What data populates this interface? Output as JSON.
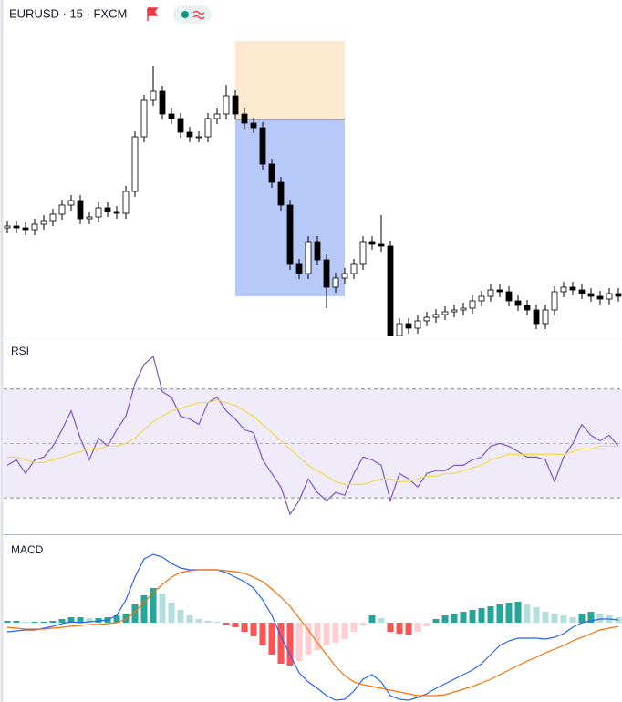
{
  "chart_data": [
    {
      "type": "candlestick",
      "title": "EURUSD · 15 · FXCM",
      "open": [
        118,
        120,
        118,
        116,
        122,
        126,
        133,
        143,
        148,
        128,
        130,
        140,
        136,
        134,
        158,
        218,
        258,
        268,
        243,
        238,
        223,
        218,
        218,
        238,
        243,
        263,
        243,
        233,
        228,
        188,
        168,
        143,
        78,
        68,
        103,
        83,
        53,
        63,
        68,
        78,
        103,
        100,
        98,
        0,
        13,
        8,
        16,
        20,
        23,
        26,
        28,
        30,
        38,
        43,
        50,
        48,
        38,
        33,
        28,
        13,
        28,
        48,
        53,
        50,
        46,
        43,
        40,
        46
      ],
      "high": [
        126,
        126,
        124,
        128,
        132,
        139,
        149,
        154,
        154,
        136,
        146,
        146,
        142,
        164,
        224,
        264,
        296,
        274,
        249,
        244,
        229,
        224,
        244,
        249,
        275,
        269,
        249,
        239,
        234,
        194,
        174,
        149,
        84,
        109,
        109,
        89,
        69,
        74,
        84,
        109,
        109,
        132,
        104,
        19,
        19,
        22,
        26,
        29,
        32,
        34,
        36,
        44,
        49,
        56,
        56,
        54,
        44,
        39,
        34,
        34,
        54,
        59,
        59,
        56,
        52,
        49,
        52,
        52
      ],
      "low": [
        112,
        112,
        110,
        110,
        116,
        120,
        127,
        137,
        122,
        122,
        124,
        130,
        128,
        128,
        152,
        212,
        252,
        237,
        232,
        217,
        212,
        212,
        212,
        232,
        237,
        237,
        227,
        222,
        182,
        162,
        137,
        72,
        62,
        62,
        77,
        30,
        47,
        57,
        62,
        72,
        94,
        92,
        -6,
        -6,
        2,
        2,
        10,
        14,
        17,
        20,
        22,
        24,
        32,
        37,
        42,
        32,
        27,
        22,
        7,
        7,
        22,
        42,
        44,
        40,
        37,
        34,
        34,
        37
      ],
      "close": [
        120,
        118,
        116,
        122,
        126,
        133,
        143,
        148,
        128,
        130,
        140,
        136,
        134,
        158,
        218,
        258,
        268,
        243,
        238,
        223,
        218,
        218,
        238,
        243,
        263,
        243,
        233,
        228,
        188,
        168,
        143,
        78,
        68,
        103,
        83,
        53,
        63,
        68,
        78,
        103,
        100,
        98,
        0,
        13,
        8,
        16,
        20,
        23,
        26,
        28,
        30,
        38,
        43,
        50,
        48,
        38,
        33,
        28,
        13,
        28,
        48,
        53,
        50,
        46,
        43,
        40,
        46,
        43
      ],
      "ylim": [
        0,
        328
      ],
      "up_color": "#ffffff",
      "down_color": "#000000",
      "position": {
        "from": 25,
        "to": 37,
        "entry": 237,
        "stop": 323,
        "target": 43,
        "stop_color": "#fde4c3",
        "target_color": "#a9bff8"
      }
    },
    {
      "type": "line",
      "title": "RSI",
      "series": [
        {
          "color": "#7e57c2",
          "values": [
            42,
            44,
            39,
            44,
            45,
            49,
            55,
            62,
            52,
            44,
            52,
            49,
            55,
            60,
            72,
            79,
            82,
            69,
            67,
            60,
            59,
            57,
            65,
            67,
            62,
            59,
            55,
            54,
            44,
            39,
            34,
            24,
            29,
            37,
            32,
            29,
            32,
            31,
            39,
            45,
            44,
            42,
            29,
            39,
            37,
            34,
            39,
            40,
            40,
            42,
            42,
            44,
            45,
            49,
            50,
            49,
            47,
            45,
            45,
            44,
            36,
            45,
            50,
            57,
            53,
            51,
            53,
            49
          ]
        },
        {
          "color": "#f2d94f",
          "values": [
            45,
            45,
            44,
            43,
            43,
            44,
            45,
            46,
            47,
            48,
            48,
            49,
            49,
            50,
            52,
            55,
            58,
            60,
            62,
            63,
            64,
            65,
            65,
            66,
            65,
            64,
            62,
            60,
            57,
            54,
            51,
            48,
            45,
            42,
            40,
            38,
            36,
            35,
            35,
            35,
            36,
            37,
            37,
            36,
            36,
            37,
            38,
            38,
            39,
            39,
            40,
            41,
            42,
            44,
            45,
            46,
            46,
            46,
            46,
            46,
            46,
            46,
            47,
            48,
            48,
            49,
            49,
            49
          ]
        }
      ],
      "ylim": [
        17,
        89
      ],
      "levels": [
        30,
        50,
        70
      ],
      "band_color": "#efebf9"
    },
    {
      "type": "macd",
      "title": "MACD",
      "series": [
        {
          "color": "#2962ff",
          "values": [
            -10,
            -9,
            -8,
            -8,
            -6,
            -4,
            -1,
            1,
            0,
            1,
            2,
            3,
            8,
            25,
            50,
            70,
            75,
            72,
            65,
            60,
            58,
            58,
            58,
            58,
            55,
            50,
            45,
            38,
            25,
            8,
            -15,
            -35,
            -55,
            -65,
            -72,
            -80,
            -85,
            -84,
            -75,
            -62,
            -57,
            -65,
            -80,
            -84,
            -85,
            -82,
            -78,
            -72,
            -67,
            -62,
            -57,
            -52,
            -45,
            -35,
            -25,
            -20,
            -17,
            -17,
            -17,
            -18,
            -16,
            -12,
            -5,
            0,
            2,
            4,
            4,
            3
          ]
        },
        {
          "color": "#ff6d00",
          "values": [
            -5,
            -6,
            -7,
            -7,
            -7,
            -6,
            -5,
            -4,
            -3,
            -2,
            -2,
            -1,
            0,
            4,
            12,
            22,
            33,
            42,
            50,
            55,
            57,
            58,
            58,
            58,
            57,
            56,
            54,
            50,
            45,
            37,
            28,
            18,
            5,
            -8,
            -22,
            -35,
            -48,
            -58,
            -65,
            -68,
            -70,
            -72,
            -74,
            -76,
            -78,
            -80,
            -80,
            -80,
            -79,
            -76,
            -73,
            -70,
            -66,
            -62,
            -57,
            -52,
            -47,
            -42,
            -38,
            -33,
            -29,
            -25,
            -20,
            -16,
            -12,
            -8,
            -6,
            -4
          ]
        }
      ],
      "histogram": [
        2,
        2,
        1,
        1,
        1,
        2,
        4,
        6,
        6,
        5,
        5,
        6,
        8,
        10,
        20,
        30,
        38,
        32,
        22,
        14,
        8,
        4,
        2,
        1,
        -2,
        -5,
        -10,
        -15,
        -25,
        -35,
        -45,
        -47,
        -42,
        -35,
        -30,
        -25,
        -22,
        -18,
        -10,
        -3,
        8,
        5,
        -10,
        -12,
        -13,
        -10,
        -4,
        4,
        8,
        10,
        12,
        14,
        16,
        18,
        20,
        22,
        23,
        20,
        17,
        12,
        10,
        8,
        6,
        10,
        12,
        10,
        8,
        6
      ],
      "histogram_colors": [
        "#26a69a",
        "#b2dfdb",
        "#ff5252",
        "#ffcdd2"
      ],
      "ylim": [
        -87,
        93
      ]
    }
  ]
}
